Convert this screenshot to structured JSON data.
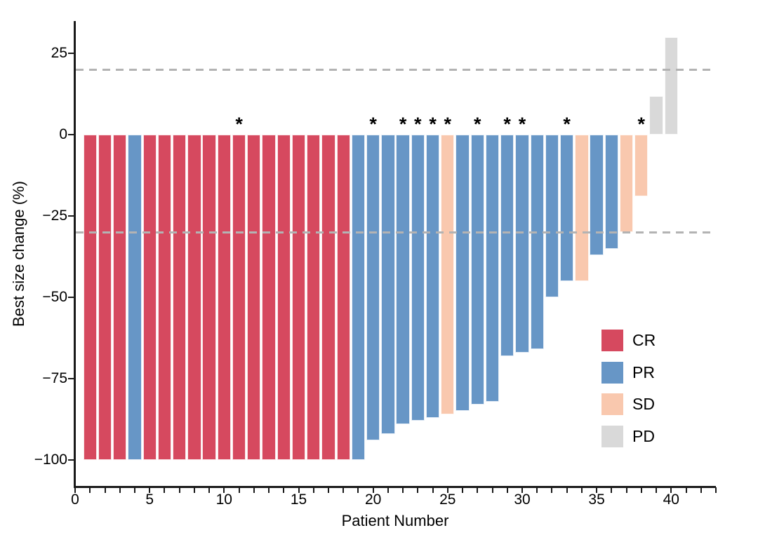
{
  "chart_data": {
    "type": "bar",
    "variant": "waterfall",
    "title": "",
    "xlabel": "Patient Number",
    "ylabel": "Best size change (%)",
    "xlim": [
      0,
      43
    ],
    "ylim": [
      -108.4,
      35
    ],
    "x_major_ticks": [
      0,
      5,
      10,
      15,
      20,
      25,
      30,
      35,
      40
    ],
    "x_minor_tick_step": 1,
    "y_ticks": [
      {
        "v": 25,
        "label": "25"
      },
      {
        "v": 0,
        "label": "0"
      },
      {
        "v": -25,
        "label": "−25"
      },
      {
        "v": -50,
        "label": "−50"
      },
      {
        "v": -75,
        "label": "−75"
      },
      {
        "v": -100,
        "label": "−100"
      }
    ],
    "reference_lines": [
      {
        "y": 20,
        "style": "dashed",
        "color": "#b3b3b3"
      },
      {
        "y": -30,
        "style": "dashed",
        "color": "#b3b3b3"
      }
    ],
    "palette": {
      "CR": "#d6495f",
      "PR": "#6796c6",
      "SD": "#f9c8ae",
      "PD": "#d9d9d9"
    },
    "asterisk_symbol": "*",
    "patients": [
      {
        "n": 1,
        "value": -100,
        "group": "CR",
        "asterisk": false
      },
      {
        "n": 2,
        "value": -100,
        "group": "CR",
        "asterisk": false
      },
      {
        "n": 3,
        "value": -100,
        "group": "CR",
        "asterisk": false
      },
      {
        "n": 4,
        "value": -100,
        "group": "PR",
        "asterisk": false
      },
      {
        "n": 5,
        "value": -100,
        "group": "CR",
        "asterisk": false
      },
      {
        "n": 6,
        "value": -100,
        "group": "CR",
        "asterisk": false
      },
      {
        "n": 7,
        "value": -100,
        "group": "CR",
        "asterisk": false
      },
      {
        "n": 8,
        "value": -100,
        "group": "CR",
        "asterisk": false
      },
      {
        "n": 9,
        "value": -100,
        "group": "CR",
        "asterisk": false
      },
      {
        "n": 10,
        "value": -100,
        "group": "CR",
        "asterisk": false
      },
      {
        "n": 11,
        "value": -100,
        "group": "CR",
        "asterisk": true
      },
      {
        "n": 12,
        "value": -100,
        "group": "CR",
        "asterisk": false
      },
      {
        "n": 13,
        "value": -100,
        "group": "CR",
        "asterisk": false
      },
      {
        "n": 14,
        "value": -100,
        "group": "CR",
        "asterisk": false
      },
      {
        "n": 15,
        "value": -100,
        "group": "CR",
        "asterisk": false
      },
      {
        "n": 16,
        "value": -100,
        "group": "CR",
        "asterisk": false
      },
      {
        "n": 17,
        "value": -100,
        "group": "CR",
        "asterisk": false
      },
      {
        "n": 18,
        "value": -100,
        "group": "CR",
        "asterisk": false
      },
      {
        "n": 19,
        "value": -100,
        "group": "PR",
        "asterisk": false
      },
      {
        "n": 20,
        "value": -94,
        "group": "PR",
        "asterisk": true
      },
      {
        "n": 21,
        "value": -92,
        "group": "PR",
        "asterisk": false
      },
      {
        "n": 22,
        "value": -89,
        "group": "PR",
        "asterisk": true
      },
      {
        "n": 23,
        "value": -88,
        "group": "PR",
        "asterisk": true
      },
      {
        "n": 24,
        "value": -87,
        "group": "PR",
        "asterisk": true
      },
      {
        "n": 25,
        "value": -86,
        "group": "SD",
        "asterisk": true
      },
      {
        "n": 26,
        "value": -85,
        "group": "PR",
        "asterisk": false
      },
      {
        "n": 27,
        "value": -83,
        "group": "PR",
        "asterisk": true
      },
      {
        "n": 28,
        "value": -82,
        "group": "PR",
        "asterisk": false
      },
      {
        "n": 29,
        "value": -68,
        "group": "PR",
        "asterisk": true
      },
      {
        "n": 30,
        "value": -67,
        "group": "PR",
        "asterisk": true
      },
      {
        "n": 31,
        "value": -66,
        "group": "PR",
        "asterisk": false
      },
      {
        "n": 32,
        "value": -50,
        "group": "PR",
        "asterisk": false
      },
      {
        "n": 33,
        "value": -45,
        "group": "PR",
        "asterisk": true
      },
      {
        "n": 34,
        "value": -45,
        "group": "SD",
        "asterisk": false
      },
      {
        "n": 35,
        "value": -37,
        "group": "PR",
        "asterisk": false
      },
      {
        "n": 36,
        "value": -35,
        "group": "PR",
        "asterisk": false
      },
      {
        "n": 37,
        "value": -30,
        "group": "SD",
        "asterisk": false
      },
      {
        "n": 38,
        "value": -19,
        "group": "SD",
        "asterisk": true
      },
      {
        "n": 39,
        "value": 12,
        "group": "PD",
        "asterisk": false
      },
      {
        "n": 40,
        "value": 30,
        "group": "PD",
        "asterisk": false
      }
    ]
  },
  "legend": {
    "items": [
      {
        "label": "CR",
        "color": "#d6495f"
      },
      {
        "label": "PR",
        "color": "#6796c6"
      },
      {
        "label": "SD",
        "color": "#f9c8ae"
      },
      {
        "label": "PD",
        "color": "#d9d9d9"
      }
    ]
  }
}
